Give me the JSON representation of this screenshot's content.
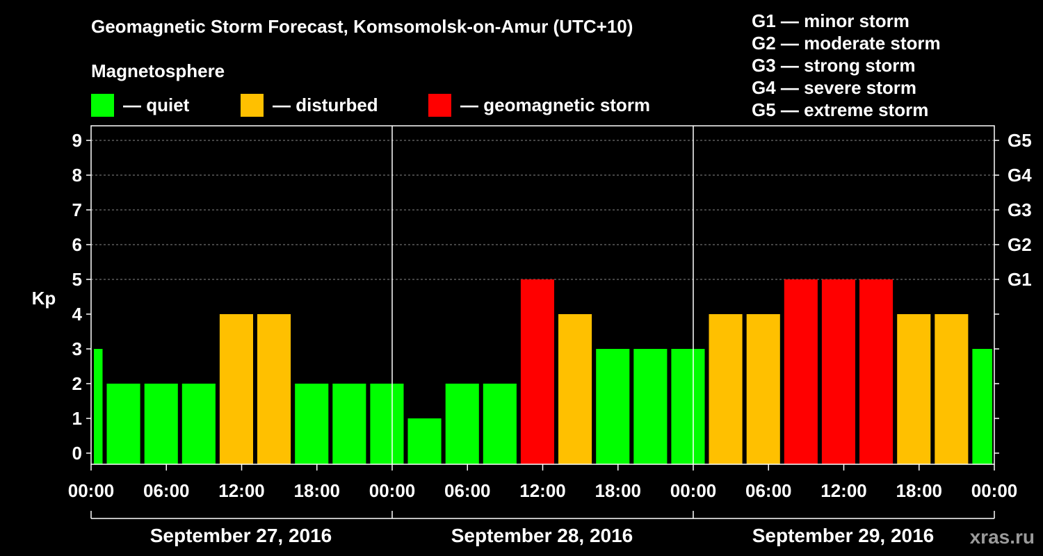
{
  "title": "Geomagnetic Storm Forecast, Komsomolsk-on-Amur (UTC+10)",
  "magnetosphere": {
    "title": "Magnetosphere",
    "legend": [
      {
        "label": "— quiet",
        "color": "#00ff00"
      },
      {
        "label": "— disturbed",
        "color": "#ffc000"
      },
      {
        "label": "— geomagnetic storm",
        "color": "#ff0000"
      }
    ]
  },
  "g_scale": [
    "G1 — minor storm",
    "G2 — moderate storm",
    "G3 — strong storm",
    "G4 — severe storm",
    "G5 — extreme storm"
  ],
  "site": "xras.ru",
  "chart_data": {
    "type": "bar",
    "title": "Geomagnetic Storm Forecast, Komsomolsk-on-Amur (UTC+10)",
    "ylabel": "Kp",
    "xlabel": "",
    "ylim": [
      0,
      9
    ],
    "y_ticks": [
      "0",
      "1",
      "2",
      "3",
      "4",
      "5",
      "6",
      "7",
      "8",
      "9"
    ],
    "right_ticks": [
      {
        "kp": 5,
        "label": "G1"
      },
      {
        "kp": 6,
        "label": "G2"
      },
      {
        "kp": 7,
        "label": "G3"
      },
      {
        "kp": 8,
        "label": "G4"
      },
      {
        "kp": 9,
        "label": "G5"
      }
    ],
    "x_tick_labels": [
      "00:00",
      "06:00",
      "12:00",
      "18:00",
      "00:00",
      "06:00",
      "12:00",
      "18:00",
      "00:00",
      "06:00",
      "12:00",
      "18:00",
      "00:00"
    ],
    "days": [
      "September 27, 2016",
      "September 28, 2016",
      "September 29, 2016"
    ],
    "start_hour": 0,
    "bar_hours": 3,
    "series": [
      {
        "name": "Kp",
        "start_hours": [
          -2,
          1,
          4,
          7,
          10,
          13,
          16,
          19,
          22,
          25,
          28,
          31,
          34,
          37,
          40,
          43,
          46,
          49,
          52,
          55,
          58,
          61,
          64,
          67,
          70
        ],
        "values": [
          3,
          2,
          2,
          2,
          4,
          4,
          2,
          2,
          2,
          1,
          2,
          2,
          5,
          4,
          3,
          3,
          3,
          4,
          4,
          5,
          5,
          5,
          4,
          4,
          3
        ],
        "levels": [
          "quiet",
          "quiet",
          "quiet",
          "quiet",
          "disturbed",
          "disturbed",
          "quiet",
          "quiet",
          "quiet",
          "quiet",
          "quiet",
          "quiet",
          "storm",
          "disturbed",
          "quiet",
          "quiet",
          "quiet",
          "disturbed",
          "disturbed",
          "storm",
          "storm",
          "storm",
          "disturbed",
          "disturbed",
          "quiet"
        ]
      }
    ],
    "level_colors": {
      "quiet": "#00ff00",
      "disturbed": "#ffc000",
      "storm": "#ff0000"
    }
  }
}
